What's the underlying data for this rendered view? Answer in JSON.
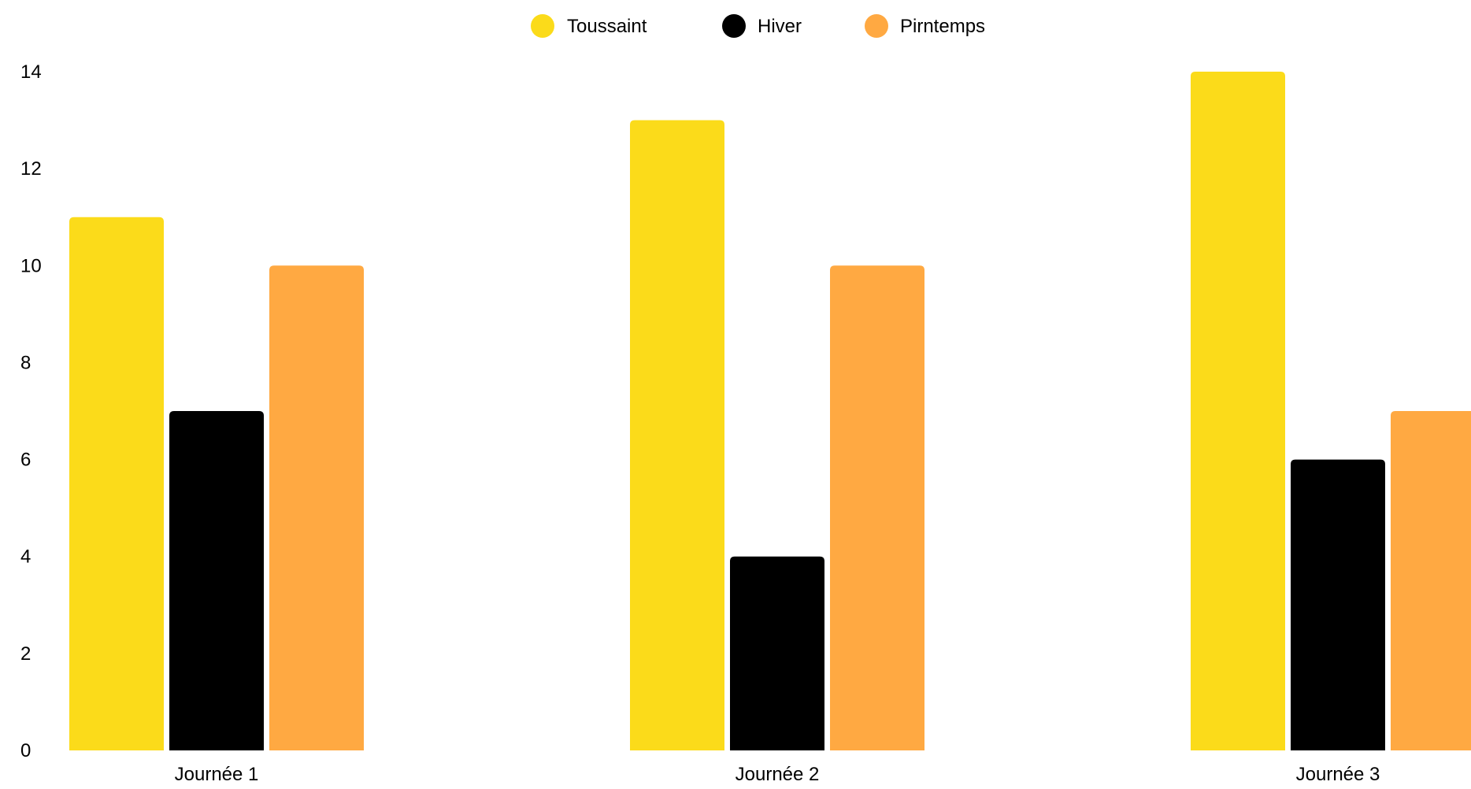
{
  "chart_data": {
    "type": "bar",
    "categories": [
      "Journée 1",
      "Journée 2",
      "Journée 3"
    ],
    "series": [
      {
        "name": "Toussaint",
        "color": "#fbdb1a",
        "values": [
          11,
          13,
          14
        ]
      },
      {
        "name": "Hiver",
        "color": "#000000",
        "values": [
          7,
          4,
          6
        ]
      },
      {
        "name": "Pirntemps",
        "color": "#ffa942",
        "values": [
          10,
          10,
          7
        ]
      }
    ],
    "y_ticks": [
      "0",
      "2",
      "4",
      "6",
      "8",
      "10",
      "12",
      "14"
    ],
    "ylim": [
      0,
      14
    ],
    "grid": false,
    "legend_position": "top-center"
  }
}
